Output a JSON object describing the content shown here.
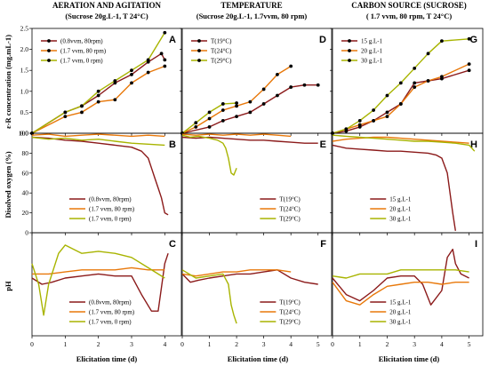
{
  "columns": [
    {
      "title": "AERATION AND AGITATION",
      "subtitle": "(Sucrose 20g.L-1, T 24°C)"
    },
    {
      "title": "TEMPERATURE",
      "subtitle": "(Sucrose 20g.L-1, 1.7vvm, 80 rpm)"
    },
    {
      "title": "CARBON SOURCE (SUCROSE)",
      "subtitle": "( 1.7 vvm, 80 rpm, T 24°C)"
    }
  ],
  "row_labels": [
    "ε-R concentration (mg.mL-1)",
    "Disolved oxygen (%)",
    "pH"
  ],
  "x_label": "Elicitation time (d)",
  "colors": {
    "dark": "#8b1a1a",
    "orange": "#e8780a",
    "olive": "#a8b400"
  },
  "chart_data": [
    {
      "type": "line",
      "panel": "A",
      "col": 0,
      "row": 0,
      "xlim": [
        0,
        4.5
      ],
      "ylim": [
        0,
        2.5
      ],
      "xticks": [
        0,
        1,
        2,
        3,
        4
      ],
      "yticks": [
        0.0,
        0.5,
        1.0,
        1.5,
        2.0,
        2.5
      ],
      "legend_position": "top-left",
      "series": [
        {
          "name": "(0.8vvm, 80rpm)",
          "color": "dark",
          "markers": true,
          "x": [
            0,
            1,
            1.5,
            2,
            2.5,
            3,
            3.5,
            3.9,
            4
          ],
          "y": [
            0,
            0.5,
            0.65,
            0.9,
            1.2,
            1.4,
            1.7,
            1.9,
            1.75
          ]
        },
        {
          "name": "(1.7 vvm, 80 rpm)",
          "color": "orange",
          "markers": true,
          "x": [
            0,
            1,
            1.5,
            2,
            2.5,
            3,
            3.5,
            4
          ],
          "y": [
            0,
            0.4,
            0.5,
            0.75,
            0.8,
            1.2,
            1.45,
            1.6
          ]
        },
        {
          "name": "(1.7 vvm, 0 rpm)",
          "color": "olive",
          "markers": true,
          "x": [
            0,
            1,
            1.5,
            2,
            2.5,
            3,
            3.5,
            4
          ],
          "y": [
            0,
            0.5,
            0.65,
            1.0,
            1.25,
            1.5,
            1.75,
            2.4
          ]
        }
      ]
    },
    {
      "type": "line",
      "panel": "D",
      "col": 1,
      "row": 0,
      "xlim": [
        0,
        5.5
      ],
      "ylim": [
        0,
        2.5
      ],
      "xticks": [
        0,
        1,
        2,
        3,
        4,
        5
      ],
      "yticks": [
        0.0,
        0.5,
        1.0,
        1.5,
        2.0,
        2.5
      ],
      "legend_position": "top-left",
      "series": [
        {
          "name": "T(19°C)",
          "color": "dark",
          "markers": true,
          "x": [
            0,
            1,
            1.5,
            2,
            2.5,
            3,
            3.5,
            4,
            4.5,
            5
          ],
          "y": [
            0,
            0.15,
            0.3,
            0.4,
            0.5,
            0.7,
            0.9,
            1.1,
            1.15,
            1.15
          ]
        },
        {
          "name": "T(24°C)",
          "color": "orange",
          "markers": true,
          "x": [
            0,
            0.5,
            1,
            1.5,
            2,
            2.5,
            3,
            3.5,
            4
          ],
          "y": [
            0,
            0.15,
            0.35,
            0.55,
            0.65,
            0.75,
            1.05,
            1.4,
            1.6
          ]
        },
        {
          "name": "T(29°C)",
          "color": "olive",
          "markers": true,
          "x": [
            0,
            0.5,
            1,
            1.5,
            2
          ],
          "y": [
            0,
            0.25,
            0.5,
            0.7,
            0.72
          ]
        }
      ]
    },
    {
      "type": "line",
      "panel": "G",
      "col": 2,
      "row": 0,
      "xlim": [
        0,
        5.5
      ],
      "ylim": [
        0,
        2.5
      ],
      "xticks": [
        0,
        1,
        2,
        3,
        4,
        5
      ],
      "yticks": [
        0.0,
        0.5,
        1.0,
        1.5,
        2.0,
        2.5
      ],
      "legend_position": "top-left",
      "series": [
        {
          "name": "15 g.L-1",
          "color": "dark",
          "markers": true,
          "x": [
            0,
            0.5,
            1,
            1.5,
            2,
            2.5,
            3,
            3.5,
            4,
            5
          ],
          "y": [
            0,
            0.05,
            0.15,
            0.3,
            0.5,
            0.7,
            1.2,
            1.25,
            1.3,
            1.5
          ]
        },
        {
          "name": "20 g.L-1",
          "color": "orange",
          "markers": true,
          "x": [
            0,
            0.5,
            1,
            1.5,
            2,
            2.5,
            3,
            3.5,
            4,
            5
          ],
          "y": [
            0,
            0.1,
            0.2,
            0.3,
            0.4,
            0.7,
            1.1,
            1.25,
            1.35,
            1.65
          ]
        },
        {
          "name": "30 g.L-1",
          "color": "olive",
          "markers": true,
          "x": [
            0,
            0.5,
            1,
            1.5,
            2,
            2.5,
            3,
            3.5,
            4,
            5
          ],
          "y": [
            0,
            0.1,
            0.3,
            0.55,
            0.9,
            1.2,
            1.55,
            1.9,
            2.2,
            2.25
          ]
        }
      ]
    },
    {
      "type": "line",
      "panel": "B",
      "col": 0,
      "row": 1,
      "xlim": [
        0,
        4.5
      ],
      "ylim": [
        0,
        100
      ],
      "xticks": [
        0,
        1,
        2,
        3,
        4
      ],
      "yticks": [
        0,
        20,
        40,
        60,
        80,
        100
      ],
      "legend_position": "bottom-center",
      "series": [
        {
          "name": "(0.8vvm, 80rpm)",
          "color": "dark",
          "markers": false,
          "x": [
            0,
            0.5,
            1,
            1.5,
            2,
            2.5,
            3,
            3.3,
            3.5,
            3.6,
            3.7,
            3.8,
            3.9,
            4,
            4.1
          ],
          "y": [
            96,
            95,
            93,
            92,
            90,
            88,
            86,
            82,
            75,
            65,
            55,
            45,
            35,
            20,
            18
          ]
        },
        {
          "name": "(1.7 vvm, 80 rpm)",
          "color": "orange",
          "markers": false,
          "x": [
            0,
            0.5,
            1,
            1.5,
            2,
            2.5,
            3,
            3.5,
            4
          ],
          "y": [
            98,
            99,
            97,
            98,
            99,
            98,
            97,
            98,
            97
          ]
        },
        {
          "name": "(1.7 vvm, 0 rpm)",
          "color": "olive",
          "markers": false,
          "x": [
            0,
            0.5,
            1,
            1.5,
            2,
            2.5,
            3,
            3.5,
            4
          ],
          "y": [
            96,
            94,
            95,
            93,
            94,
            92,
            90,
            89,
            88
          ]
        }
      ]
    },
    {
      "type": "line",
      "panel": "E",
      "col": 1,
      "row": 1,
      "xlim": [
        0,
        5.5
      ],
      "ylim": [
        0,
        100
      ],
      "xticks": [
        0,
        1,
        2,
        3,
        4,
        5
      ],
      "yticks": [
        0,
        20,
        40,
        60,
        80,
        100
      ],
      "legend_position": "bottom-right",
      "series": [
        {
          "name": "T(19°C)",
          "color": "dark",
          "markers": false,
          "x": [
            0,
            0.5,
            1,
            1.5,
            2,
            2.5,
            3,
            3.5,
            4,
            4.5,
            5
          ],
          "y": [
            96,
            95,
            96,
            95,
            94,
            93,
            93,
            92,
            91,
            90,
            90
          ]
        },
        {
          "name": "T(24°C)",
          "color": "orange",
          "markers": false,
          "x": [
            0,
            0.5,
            1,
            1.5,
            2,
            2.5,
            3,
            3.5,
            4
          ],
          "y": [
            99,
            98,
            99,
            98,
            99,
            98,
            99,
            98,
            97
          ]
        },
        {
          "name": "T(29°C)",
          "color": "olive",
          "markers": false,
          "x": [
            0,
            0.3,
            0.6,
            1,
            1.3,
            1.5,
            1.6,
            1.7,
            1.8,
            1.9,
            2.0
          ],
          "y": [
            98,
            96,
            97,
            95,
            93,
            90,
            85,
            75,
            60,
            58,
            65
          ]
        }
      ]
    },
    {
      "type": "line",
      "panel": "H",
      "col": 2,
      "row": 1,
      "xlim": [
        0,
        5.5
      ],
      "ylim": [
        0,
        100
      ],
      "xticks": [
        0,
        1,
        2,
        3,
        4,
        5
      ],
      "yticks": [
        0,
        20,
        40,
        60,
        80,
        100
      ],
      "legend_position": "bottom-center",
      "series": [
        {
          "name": "15 g.L-1",
          "color": "dark",
          "markers": false,
          "x": [
            0,
            0.5,
            1,
            1.5,
            2,
            2.5,
            3,
            3.5,
            3.8,
            4,
            4.2,
            4.4,
            4.5
          ],
          "y": [
            88,
            85,
            84,
            83,
            82,
            82,
            81,
            80,
            78,
            75,
            60,
            20,
            2
          ]
        },
        {
          "name": "20 g.L-1",
          "color": "orange",
          "markers": false,
          "x": [
            0,
            0.5,
            1,
            1.5,
            2,
            2.5,
            3,
            3.5,
            4,
            4.5,
            5
          ],
          "y": [
            92,
            94,
            95,
            96,
            96,
            95,
            94,
            93,
            92,
            91,
            90
          ]
        },
        {
          "name": "30 g.L-1",
          "color": "olive",
          "markers": false,
          "x": [
            0,
            0.5,
            1,
            1.5,
            2,
            2.5,
            3,
            3.5,
            4,
            4.5,
            5,
            5.2
          ],
          "y": [
            98,
            97,
            96,
            95,
            94,
            93,
            92,
            92,
            91,
            90,
            88,
            82
          ]
        }
      ]
    },
    {
      "type": "line",
      "panel": "C",
      "col": 0,
      "row": 2,
      "xlim": [
        0,
        4.5
      ],
      "ylim": [
        3,
        8
      ],
      "xticks": [
        0,
        1,
        2,
        3,
        4
      ],
      "yticks": [],
      "legend_position": "bottom-center",
      "series": [
        {
          "name": "(0.8vvm, 80rpm)",
          "color": "dark",
          "markers": false,
          "x": [
            0,
            0.3,
            0.6,
            1,
            1.5,
            2,
            2.5,
            3,
            3.3,
            3.6,
            3.8,
            4,
            4.1
          ],
          "y": [
            5.8,
            5.5,
            5.6,
            5.8,
            5.9,
            6.0,
            5.9,
            5.9,
            5.0,
            4.2,
            4.2,
            6.5,
            7.0
          ]
        },
        {
          "name": "(1.7 vvm, 80 rpm)",
          "color": "orange",
          "markers": false,
          "x": [
            0,
            0.5,
            1,
            1.5,
            2,
            2.5,
            3,
            3.5,
            4
          ],
          "y": [
            6.0,
            6.0,
            6.1,
            6.2,
            6.2,
            6.2,
            6.3,
            6.2,
            6.2
          ]
        },
        {
          "name": "(1.7 vvm, 0 rpm)",
          "color": "olive",
          "markers": false,
          "x": [
            0,
            0.2,
            0.35,
            0.5,
            0.8,
            1,
            1.5,
            2,
            2.5,
            3,
            3.5,
            4
          ],
          "y": [
            6.5,
            5.5,
            4.0,
            5.5,
            7.0,
            7.4,
            7.0,
            7.1,
            7.0,
            6.8,
            6.3,
            5.8
          ]
        }
      ]
    },
    {
      "type": "line",
      "panel": "F",
      "col": 1,
      "row": 2,
      "xlim": [
        0,
        5.5
      ],
      "ylim": [
        3,
        8
      ],
      "xticks": [
        0,
        1,
        2,
        3,
        4,
        5
      ],
      "yticks": [],
      "legend_position": "bottom-right",
      "series": [
        {
          "name": "T(19°C)",
          "color": "dark",
          "markers": false,
          "x": [
            0,
            0.3,
            0.6,
            1,
            1.5,
            2,
            2.5,
            3,
            3.5,
            4,
            4.5,
            5
          ],
          "y": [
            6.0,
            5.6,
            5.7,
            5.8,
            5.9,
            6.0,
            6.0,
            6.1,
            6.2,
            5.8,
            5.6,
            5.5
          ]
        },
        {
          "name": "T(24°C)",
          "color": "orange",
          "markers": false,
          "x": [
            0,
            0.5,
            1,
            1.5,
            2,
            2.5,
            3,
            3.5,
            4
          ],
          "y": [
            6.0,
            5.9,
            6.0,
            6.1,
            6.1,
            6.2,
            6.2,
            6.2,
            6.1
          ]
        },
        {
          "name": "T(29°C)",
          "color": "olive",
          "markers": false,
          "x": [
            0,
            0.5,
            1,
            1.5,
            1.7,
            1.8,
            1.9,
            2.0
          ],
          "y": [
            6.2,
            5.8,
            5.9,
            6.0,
            5.5,
            4.5,
            4.0,
            3.6
          ]
        }
      ]
    },
    {
      "type": "line",
      "panel": "I",
      "col": 2,
      "row": 2,
      "xlim": [
        0,
        5.5
      ],
      "ylim": [
        3,
        8
      ],
      "xticks": [
        0,
        1,
        2,
        3,
        4,
        5
      ],
      "yticks": [],
      "legend_position": "bottom-center",
      "series": [
        {
          "name": "15 g.L-1",
          "color": "dark",
          "markers": false,
          "x": [
            0,
            0.5,
            1,
            1.5,
            2,
            2.5,
            3,
            3.3,
            3.6,
            4,
            4.2,
            4.4,
            4.5,
            4.7,
            5
          ],
          "y": [
            5.8,
            5.0,
            4.7,
            5.2,
            5.8,
            5.9,
            5.9,
            5.5,
            4.5,
            5.2,
            6.8,
            7.2,
            6.5,
            6.0,
            5.8
          ]
        },
        {
          "name": "20 g.L-1",
          "color": "orange",
          "markers": false,
          "x": [
            0,
            0.5,
            1,
            1.5,
            2,
            2.5,
            3,
            3.5,
            4,
            4.5,
            5
          ],
          "y": [
            5.6,
            4.7,
            4.5,
            5.0,
            5.4,
            5.5,
            5.6,
            5.6,
            5.5,
            5.6,
            5.6
          ]
        },
        {
          "name": "30 g.L-1",
          "color": "olive",
          "markers": false,
          "x": [
            0,
            0.5,
            1,
            1.5,
            2,
            2.5,
            3,
            3.5,
            4,
            4.5,
            5
          ],
          "y": [
            5.9,
            5.8,
            6.0,
            6.0,
            6.0,
            6.2,
            6.2,
            6.2,
            6.2,
            6.2,
            6.1
          ]
        }
      ]
    }
  ]
}
